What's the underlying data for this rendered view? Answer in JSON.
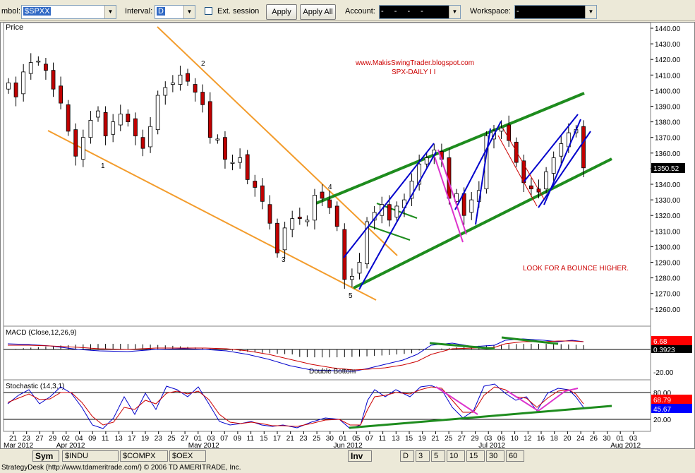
{
  "toolbar": {
    "symbol_label": "mbol:",
    "symbol_value": "$SPXX",
    "interval_label": "Interval:",
    "interval_value": "D",
    "ext_session_label": "Ext. session",
    "apply_label": "Apply",
    "apply_all_label": "Apply All",
    "account_label": "Account:",
    "account_value": "- - - -",
    "workspace_label": "Workspace:",
    "workspace_value": "-"
  },
  "panels": {
    "price_title": "Price",
    "macd_title": "MACD (Close,12,26,9)",
    "stoch_title": "Stochastic (14,3,1)"
  },
  "annotations": {
    "blog": "www.MakisSwingTrader.blogspot.com",
    "subtitle": "SPX-DAILY I I",
    "note": "LOOK FOR A BOUNCE HIGHER.",
    "double_bottom": "Double Bottom",
    "wave_labels": [
      "1",
      "2",
      "3",
      "4",
      "5"
    ]
  },
  "price_axis": {
    "ticks": [
      "1440.00",
      "1430.00",
      "1420.00",
      "1410.00",
      "1400.00",
      "1390.00",
      "1380.00",
      "1370.00",
      "1360.00",
      "1350.00",
      "1340.00",
      "1330.00",
      "1320.00",
      "1310.00",
      "1300.00",
      "1290.00",
      "1280.00",
      "1270.00",
      "1260.00"
    ],
    "last_price": "1350.52"
  },
  "macd_axis": {
    "value_red": "6.68",
    "value_black": "0.3923",
    "tick_low": "-20.00"
  },
  "stoch_axis": {
    "tick_80": "80.00",
    "value_red": "68.79",
    "value_blue": "45.67",
    "tick_20": "20.00"
  },
  "date_axis": {
    "days": [
      "21",
      "23",
      "27",
      "29",
      "02",
      "04",
      "09",
      "11",
      "13",
      "17",
      "19",
      "23",
      "25",
      "27",
      "01",
      "03",
      "07",
      "09",
      "11",
      "15",
      "17",
      "21",
      "23",
      "25",
      "30",
      "01",
      "05",
      "07",
      "11",
      "13",
      "15",
      "19",
      "21",
      "25",
      "27",
      "29",
      "03",
      "06",
      "10",
      "12",
      "16",
      "18",
      "20",
      "24",
      "26",
      "30",
      "01",
      "03"
    ],
    "months": [
      "Mar 2012",
      "Apr 2012",
      "May 2012",
      "Jun 2012",
      "Jul 2012",
      "Aug 2012"
    ]
  },
  "tabs_left": [
    "Sym",
    "$INDU",
    "$COMPX",
    "$OEX"
  ],
  "tabs_right": [
    "Inv",
    "D",
    "3",
    "5",
    "10",
    "15",
    "30",
    "60"
  ],
  "status": "StrategyDesk (http://www.tdameritrade.com/) © 2006 TD AMERITRADE, Inc.",
  "colors": {
    "up_candle": "#ffffff",
    "down_candle": "#c00000",
    "channel_green": "#1e8c1e",
    "trend_orange": "#f39c2c",
    "blue_lines": "#0000cc",
    "magenta_lines": "#dd33cc",
    "macd_line": "#0000cc",
    "signal_line": "#cc0000",
    "note_red": "#cc0000"
  },
  "chart_data": {
    "type": "candlestick",
    "closes": [
      1405,
      1396,
      1412,
      1418,
      1419,
      1413,
      1401,
      1392,
      1374,
      1358,
      1370,
      1381,
      1387,
      1371,
      1380,
      1385,
      1380,
      1371,
      1363,
      1377,
      1397,
      1402,
      1405,
      1410,
      1406,
      1399,
      1391,
      1370,
      1369,
      1356,
      1354,
      1357,
      1343,
      1338,
      1329,
      1315,
      1296,
      1312,
      1318,
      1318,
      1317,
      1333,
      1331,
      1325,
      1313,
      1279,
      1281,
      1290,
      1316,
      1322,
      1327,
      1317,
      1326,
      1330,
      1342,
      1353,
      1357,
      1362,
      1356,
      1331,
      1334,
      1320,
      1330,
      1336,
      1371,
      1374,
      1376,
      1368,
      1354,
      1341,
      1337,
      1335,
      1348,
      1357,
      1366,
      1373,
      1375,
      1350.52
    ],
    "price_ylim": [
      1255,
      1443
    ]
  }
}
